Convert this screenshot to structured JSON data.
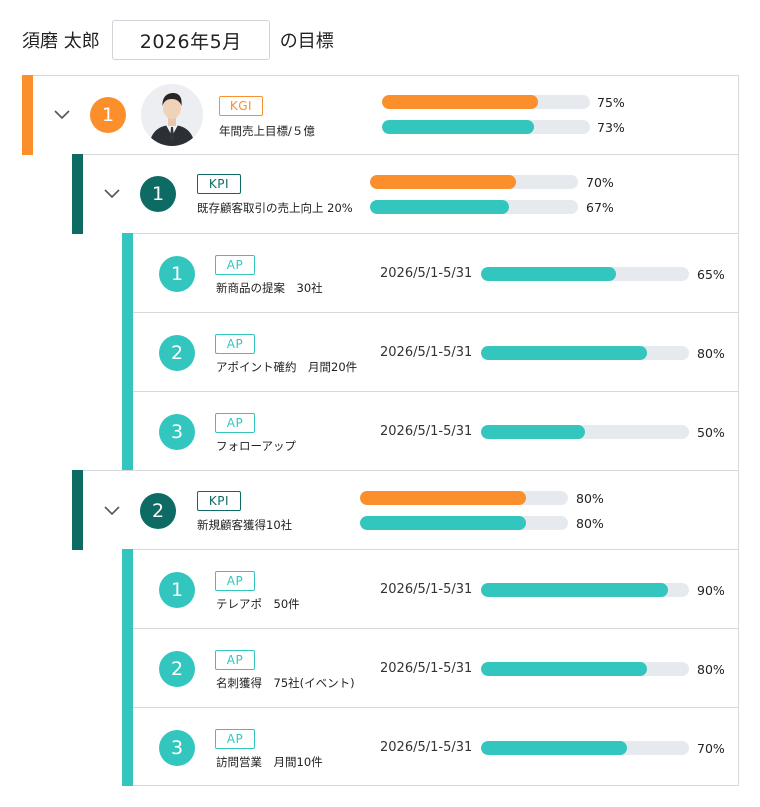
{
  "header": {
    "user_name": "須磨 太郎",
    "month": "2026年5月",
    "suffix": "の目標"
  },
  "colors": {
    "kgi_accent": "#fb8f2b",
    "kpi_accent": "#0e6b63",
    "ap_accent": "#33c6bf",
    "bar_plan": "#fb8f2b",
    "bar_actual": "#33c6bf",
    "bar_track": "#e6e9ed"
  },
  "kgi": {
    "number": "1",
    "badge": "KGI",
    "label": "年間売上目標/５億",
    "bar1_pct": "75%",
    "bar1_value": 75,
    "bar2_pct": "73%",
    "bar2_value": 73
  },
  "kpis": [
    {
      "number": "1",
      "badge": "KPI",
      "label": "既存顧客取引の売上向上 20%",
      "bar1_pct": "70%",
      "bar1_value": 70,
      "bar2_pct": "67%",
      "bar2_value": 67,
      "aps": [
        {
          "number": "1",
          "badge": "AP",
          "label": "新商品の提案　30社",
          "period": "2026/5/1-5/31",
          "pct": "65%",
          "value": 65
        },
        {
          "number": "2",
          "badge": "AP",
          "label": "アポイント確約　月間20件",
          "period": "2026/5/1-5/31",
          "pct": "80%",
          "value": 80
        },
        {
          "number": "3",
          "badge": "AP",
          "label": "フォローアップ",
          "period": "2026/5/1-5/31",
          "pct": "50%",
          "value": 50
        }
      ]
    },
    {
      "number": "2",
      "badge": "KPI",
      "label": "新規顧客獲得10社",
      "bar1_pct": "80%",
      "bar1_value": 80,
      "bar2_pct": "80%",
      "bar2_value": 80,
      "aps": [
        {
          "number": "1",
          "badge": "AP",
          "label": "テレアポ　50件",
          "period": "2026/5/1-5/31",
          "pct": "90%",
          "value": 90
        },
        {
          "number": "2",
          "badge": "AP",
          "label": "名刺獲得　75社(イベント)",
          "period": "2026/5/1-5/31",
          "pct": "80%",
          "value": 80
        },
        {
          "number": "3",
          "badge": "AP",
          "label": "訪問営業　月間10件",
          "period": "2026/5/1-5/31",
          "pct": "70%",
          "value": 70
        }
      ]
    }
  ]
}
